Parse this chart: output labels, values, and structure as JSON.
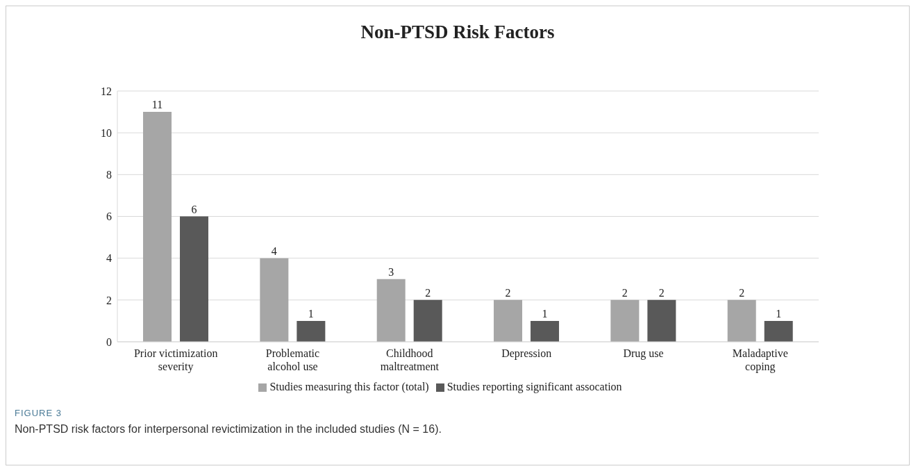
{
  "chart_data": {
    "type": "bar",
    "title": "Non-PTSD Risk Factors",
    "categories": [
      "Prior victimization\nseverity",
      "Problematic\nalcohol use",
      "Childhood\nmaltreatment",
      "Depression",
      "Drug use",
      "Maladaptive\ncoping"
    ],
    "series": [
      {
        "name": "Studies measuring this factor (total)",
        "color": "#a6a6a6",
        "values": [
          11,
          4,
          3,
          2,
          2,
          2
        ]
      },
      {
        "name": "Studies reporting significant assocation",
        "color": "#595959",
        "values": [
          6,
          1,
          2,
          1,
          2,
          1
        ]
      }
    ],
    "ylim": [
      0,
      12
    ],
    "yticks": [
      0,
      2,
      4,
      6,
      8,
      10,
      12
    ],
    "grid": "y",
    "legend": "bottom",
    "data_labels": true,
    "annotations": [
      "FIGURE 3",
      "Non-PTSD risk factors for interpersonal revictimization in the included studies (N = 16)."
    ]
  }
}
